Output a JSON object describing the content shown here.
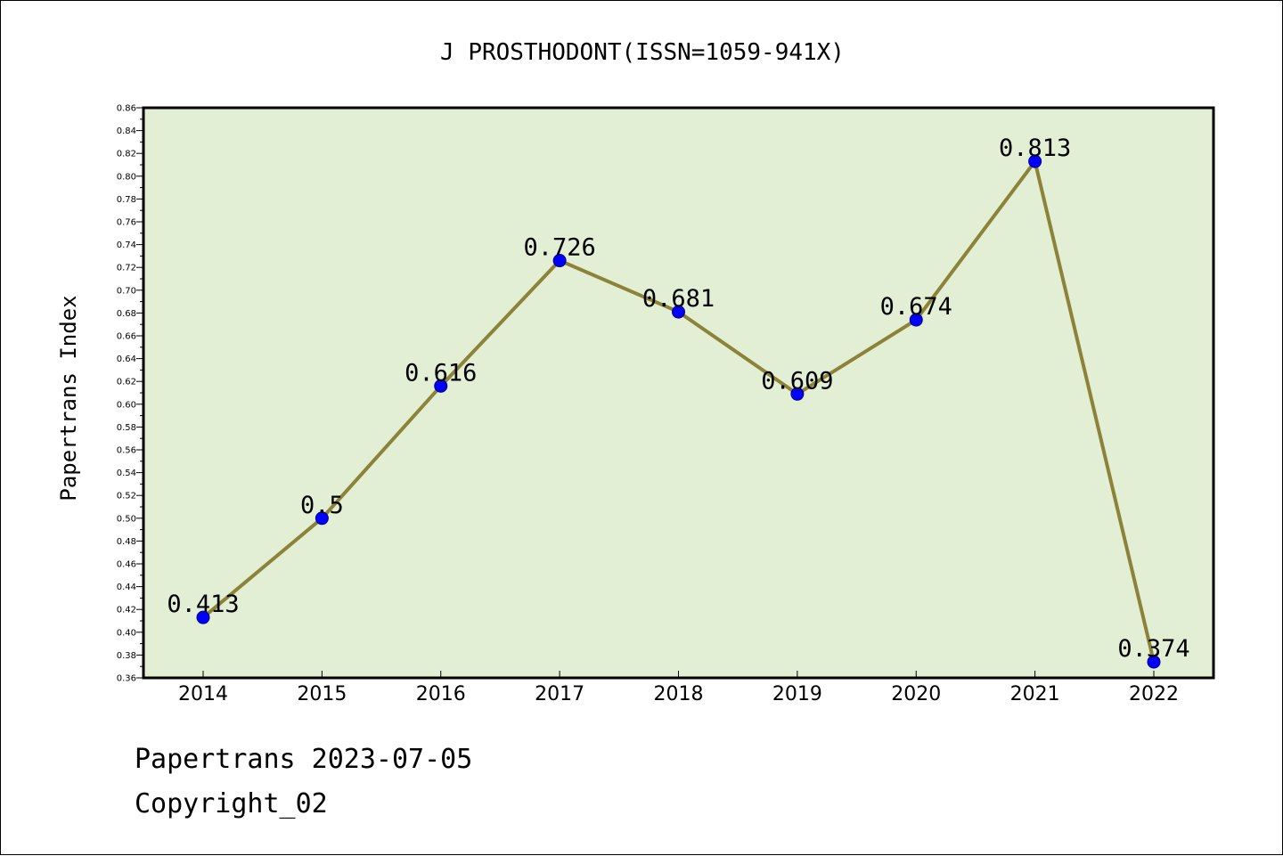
{
  "chart_data": {
    "type": "line",
    "title": "J PROSTHODONT(ISSN=1059-941X)",
    "xlabel": "",
    "ylabel": "Papertrans Index",
    "categories": [
      "2014",
      "2015",
      "2016",
      "2017",
      "2018",
      "2019",
      "2020",
      "2021",
      "2022"
    ],
    "series": [
      {
        "values": [
          0.413,
          0.5,
          0.616,
          0.726,
          0.681,
          0.609,
          0.674,
          0.813,
          0.374
        ],
        "labels": [
          "0.413",
          "0.5",
          "0.616",
          "0.726",
          "0.681",
          "0.609",
          "0.674",
          "0.813",
          "0.374"
        ]
      }
    ],
    "ylim": [
      0.36,
      0.86
    ],
    "yticks": [
      "0.36",
      "0.38",
      "0.40",
      "0.42",
      "0.44",
      "0.46",
      "0.48",
      "0.50",
      "0.52",
      "0.54",
      "0.56",
      "0.58",
      "0.60",
      "0.62",
      "0.64",
      "0.66",
      "0.68",
      "0.70",
      "0.72",
      "0.74",
      "0.76",
      "0.78",
      "0.80",
      "0.82",
      "0.84",
      "0.86"
    ],
    "grid": false,
    "legend": "none",
    "colors": {
      "plot_background": "#e2efd5",
      "line": "#8c8238",
      "marker": "#0000ff",
      "marker_edge": "#000080"
    }
  },
  "footer": {
    "line1": "Papertrans 2023-07-05",
    "line2": "Copyright_02"
  }
}
